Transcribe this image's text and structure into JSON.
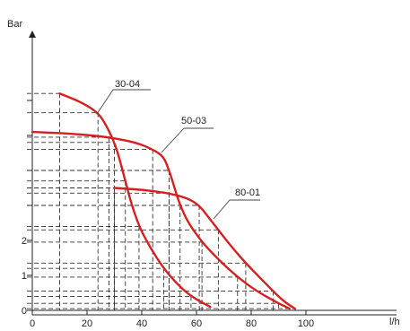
{
  "chart_data": {
    "type": "line",
    "title": "",
    "ylabel": "Bar",
    "xlabel": "l/h",
    "xlim": [
      0,
      130
    ],
    "ylim": [
      0,
      6
    ],
    "x_ticks": [
      "0",
      "20",
      "40",
      "60",
      "80",
      "100"
    ],
    "y_ticks": [
      "0",
      "1",
      "2"
    ],
    "grid": false,
    "curve_color": "#d42020",
    "series": [
      {
        "name": "30-04",
        "points": [
          [
            10,
            6.2
          ],
          [
            18,
            5.95
          ],
          [
            24,
            5.65
          ],
          [
            27,
            5.3
          ],
          [
            30,
            4.8
          ],
          [
            32,
            4.3
          ],
          [
            34,
            3.7
          ],
          [
            36,
            3.1
          ],
          [
            39,
            2.4
          ],
          [
            43,
            1.8
          ],
          [
            48,
            1.2
          ],
          [
            53,
            0.75
          ],
          [
            58,
            0.4
          ],
          [
            65,
            0.1
          ]
        ]
      },
      {
        "name": "50-03",
        "points": [
          [
            0,
            5.1
          ],
          [
            15,
            5.05
          ],
          [
            28,
            4.95
          ],
          [
            38,
            4.8
          ],
          [
            44,
            4.6
          ],
          [
            48,
            4.4
          ],
          [
            50,
            4.0
          ],
          [
            52,
            3.5
          ],
          [
            54,
            3.0
          ],
          [
            57,
            2.5
          ],
          [
            62,
            1.95
          ],
          [
            68,
            1.45
          ],
          [
            75,
            0.95
          ],
          [
            82,
            0.55
          ],
          [
            90,
            0.2
          ],
          [
            94,
            0.05
          ]
        ]
      },
      {
        "name": "80-01",
        "points": [
          [
            30,
            3.5
          ],
          [
            40,
            3.45
          ],
          [
            50,
            3.35
          ],
          [
            57,
            3.2
          ],
          [
            61,
            3.0
          ],
          [
            64,
            2.7
          ],
          [
            68,
            2.3
          ],
          [
            73,
            1.8
          ],
          [
            78,
            1.35
          ],
          [
            83,
            0.95
          ],
          [
            88,
            0.55
          ],
          [
            92,
            0.25
          ],
          [
            96,
            0.05
          ]
        ]
      }
    ]
  }
}
